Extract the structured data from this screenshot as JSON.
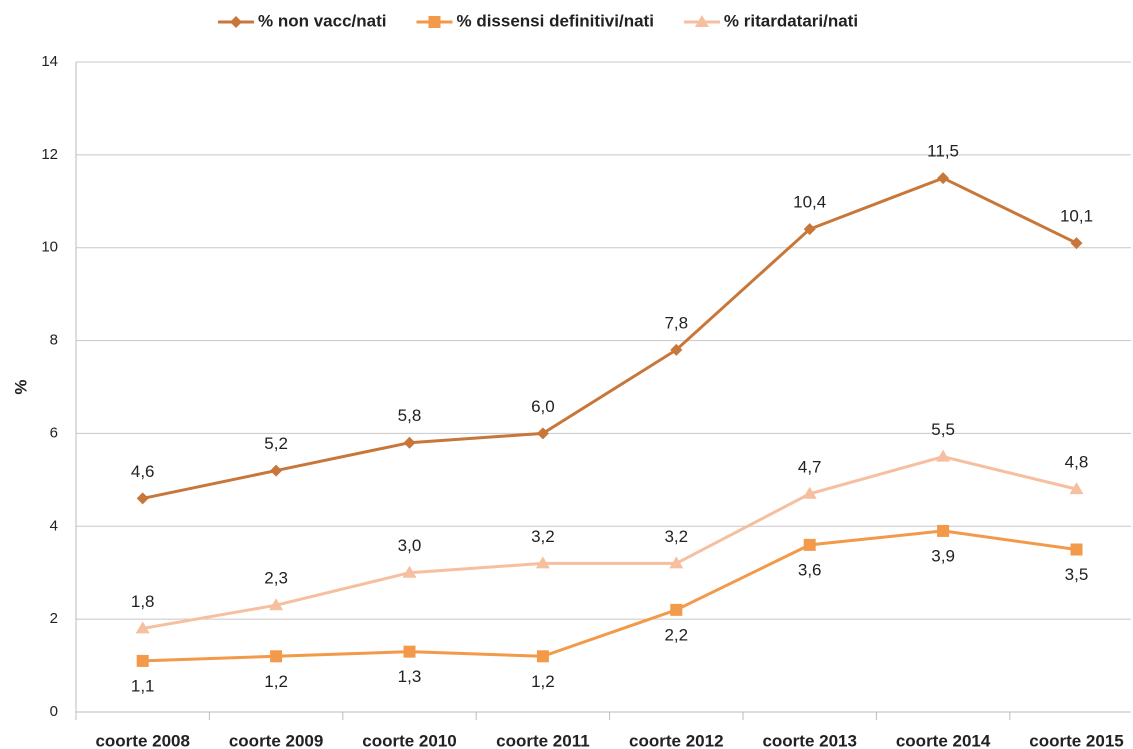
{
  "chart_data": {
    "type": "line",
    "y_label": "%",
    "categories": [
      "coorte 2008",
      "coorte 2009",
      "coorte 2010",
      "coorte 2011",
      "coorte 2012",
      "coorte 2013",
      "coorte 2014",
      "coorte 2015"
    ],
    "series": [
      {
        "name": "% non vacc/nati",
        "color": "#c8773a",
        "marker": "diamond",
        "label_position": "above",
        "values": [
          4.6,
          5.2,
          5.8,
          6.0,
          7.8,
          10.4,
          11.5,
          10.1
        ],
        "value_labels": [
          "4,6",
          "5,2",
          "5,8",
          "6,0",
          "7,8",
          "10,4",
          "11,5",
          "10,1"
        ]
      },
      {
        "name": "% dissensi definitivi/nati",
        "color": "#f29a4a",
        "marker": "square",
        "label_position": "below",
        "values": [
          1.1,
          1.2,
          1.3,
          1.2,
          2.2,
          3.6,
          3.9,
          3.5
        ],
        "value_labels": [
          "1,1",
          "1,2",
          "1,3",
          "1,2",
          "2,2",
          "3,6",
          "3,9",
          "3,5"
        ]
      },
      {
        "name": "% ritardatari/nati",
        "color": "#f5bfa0",
        "marker": "triangle",
        "label_position": "above",
        "values": [
          1.8,
          2.3,
          3.0,
          3.2,
          3.2,
          4.7,
          5.5,
          4.8
        ],
        "value_labels": [
          "1,8",
          "2,3",
          "3,0",
          "3,2",
          "3,2",
          "4,7",
          "5,5",
          "4,8"
        ]
      }
    ],
    "ylim": [
      0,
      14
    ],
    "yticks": [
      0,
      2,
      4,
      6,
      8,
      10,
      12,
      14
    ],
    "grid": true,
    "legend": "top"
  }
}
